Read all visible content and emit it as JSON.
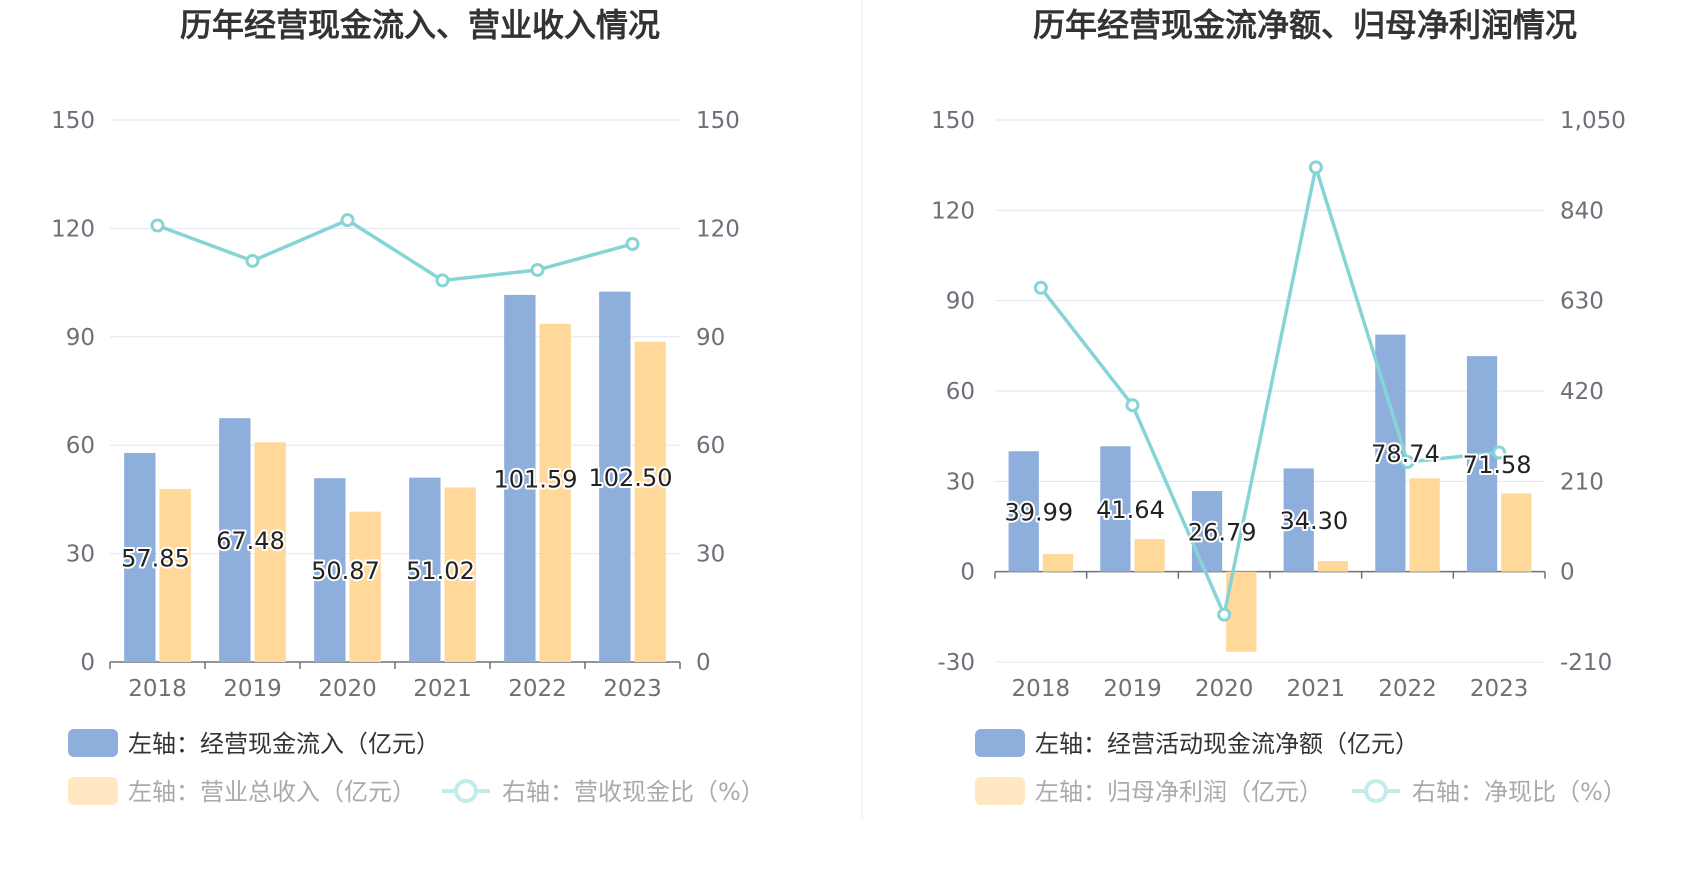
{
  "chart_data": [
    {
      "type": "bar+line",
      "title": "历年经营现金流入、营业收入情况",
      "categories": [
        "2018",
        "2019",
        "2020",
        "2021",
        "2022",
        "2023"
      ],
      "left_axis": {
        "min": 0,
        "max": 150,
        "ticks": [
          "0",
          "30",
          "60",
          "90",
          "120",
          "150"
        ]
      },
      "right_axis": {
        "min": 0,
        "max": 150,
        "ticks": [
          "0",
          "30",
          "60",
          "90",
          "120",
          "150"
        ]
      },
      "series": [
        {
          "name": "左轴：经营现金流入（亿元）",
          "type": "bar",
          "axis": "left",
          "color": "#8eaedc",
          "values": [
            57.85,
            67.48,
            50.87,
            51.02,
            101.59,
            102.5
          ],
          "labels": [
            "57.85",
            "67.48",
            "50.87",
            "51.02",
            "101.59",
            "102.50"
          ]
        },
        {
          "name": "左轴：营业总收入（亿元）",
          "type": "bar",
          "axis": "left",
          "color": "#ffd89a",
          "values": [
            47.9,
            60.8,
            41.6,
            48.3,
            93.6,
            88.6
          ]
        },
        {
          "name": "右轴：营收现金比（%）",
          "type": "line",
          "axis": "right",
          "color": "#86d4d6",
          "values": [
            120.8,
            111.0,
            122.3,
            105.6,
            108.5,
            115.7
          ]
        }
      ],
      "grid": true,
      "legend_position": "bottom"
    },
    {
      "type": "bar+line",
      "title": "历年经营现金流净额、归母净利润情况",
      "categories": [
        "2018",
        "2019",
        "2020",
        "2021",
        "2022",
        "2023"
      ],
      "left_axis": {
        "min": -30,
        "max": 150,
        "ticks": [
          "-30",
          "0",
          "30",
          "60",
          "90",
          "120",
          "150"
        ]
      },
      "right_axis": {
        "min": -210,
        "max": 1050,
        "ticks": [
          "-210",
          "0",
          "210",
          "420",
          "630",
          "840",
          "1,050"
        ]
      },
      "series": [
        {
          "name": "左轴：经营活动现金流净额（亿元）",
          "type": "bar",
          "axis": "left",
          "color": "#8eaedc",
          "values": [
            39.99,
            41.64,
            26.79,
            34.3,
            78.74,
            71.58
          ],
          "labels": [
            "39.99",
            "41.64",
            "26.79",
            "34.30",
            "78.74",
            "71.58"
          ]
        },
        {
          "name": "左轴：归母净利润（亿元）",
          "type": "bar",
          "axis": "left",
          "color": "#ffd89a",
          "values": [
            5.9,
            10.8,
            -26.6,
            3.5,
            31.0,
            26.0
          ]
        },
        {
          "name": "右轴：净现比（%）",
          "type": "line",
          "axis": "right",
          "color": "#86d4d6",
          "values": [
            660,
            387,
            -100,
            940,
            255,
            277
          ]
        }
      ],
      "grid": true,
      "legend_position": "bottom"
    }
  ]
}
